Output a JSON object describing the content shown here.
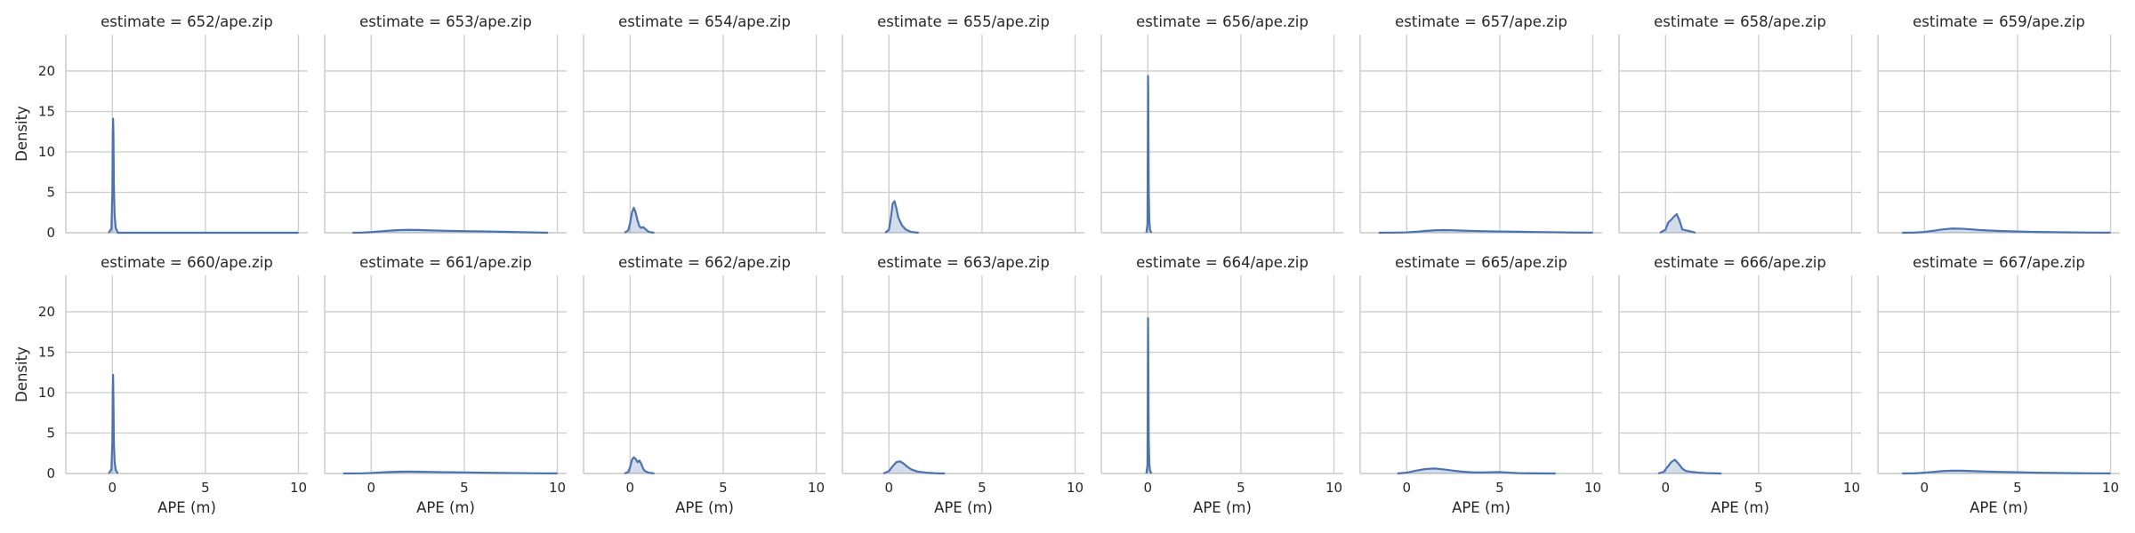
{
  "chart_data": {
    "type": "area",
    "facet_label_template": "estimate = {name}",
    "xlabel": "APE (m)",
    "ylabel": "Density",
    "xlim": [
      -2.5,
      10.5
    ],
    "ylim": [
      0,
      24.5
    ],
    "xticks": [
      0,
      5,
      10
    ],
    "yticks": [
      0,
      5,
      10,
      15,
      20
    ],
    "grid": true,
    "legend": "none",
    "color": "#4c72b0",
    "fill_color": "#4c72b0",
    "grid_color": "#cccccc",
    "facets": [
      {
        "name": "652/ape.zip",
        "curve": {
          "x": [
            -0.2,
            -0.05,
            0.0,
            0.02,
            0.04,
            0.06,
            0.08,
            0.12,
            0.18,
            0.3,
            10.0
          ],
          "y": [
            0,
            0.5,
            5,
            12,
            14.1,
            12,
            6,
            2.2,
            0.6,
            0,
            0
          ]
        }
      },
      {
        "name": "653/ape.zip",
        "curve": {
          "x": [
            -1.0,
            -0.5,
            0,
            0.5,
            1,
            1.5,
            2,
            2.5,
            3,
            4,
            5,
            6,
            7,
            8,
            9,
            9.5
          ],
          "y": [
            0,
            0.02,
            0.08,
            0.17,
            0.26,
            0.33,
            0.36,
            0.34,
            0.3,
            0.24,
            0.2,
            0.17,
            0.12,
            0.07,
            0.03,
            0
          ]
        }
      },
      {
        "name": "654/ape.zip",
        "curve": {
          "x": [
            -0.3,
            -0.1,
            0.0,
            0.1,
            0.2,
            0.3,
            0.4,
            0.5,
            0.6,
            0.7,
            0.8,
            1.0,
            1.3
          ],
          "y": [
            0,
            0.3,
            1.2,
            2.5,
            3.1,
            2.5,
            1.5,
            0.8,
            0.6,
            0.7,
            0.5,
            0.1,
            0
          ]
        }
      },
      {
        "name": "655/ape.zip",
        "curve": {
          "x": [
            -0.2,
            0.0,
            0.1,
            0.2,
            0.3,
            0.4,
            0.5,
            0.7,
            0.9,
            1.2,
            1.6
          ],
          "y": [
            0,
            0.4,
            1.8,
            3.6,
            3.9,
            3.0,
            1.9,
            0.9,
            0.4,
            0.1,
            0
          ]
        }
      },
      {
        "name": "656/ape.zip",
        "curve": {
          "x": [
            -0.08,
            -0.02,
            0.0,
            0.01,
            0.02,
            0.03,
            0.05,
            0.08,
            0.12,
            0.2
          ],
          "y": [
            0,
            1.0,
            12,
            19.4,
            18,
            13,
            5,
            1.5,
            0.3,
            0
          ]
        }
      },
      {
        "name": "657/ape.zip",
        "curve": {
          "x": [
            -1.5,
            -0.5,
            0,
            0.5,
            1,
            1.5,
            2,
            2.5,
            3,
            4,
            5,
            6,
            7,
            8,
            9,
            10
          ],
          "y": [
            0,
            0.02,
            0.05,
            0.12,
            0.22,
            0.3,
            0.33,
            0.31,
            0.26,
            0.2,
            0.16,
            0.12,
            0.09,
            0.06,
            0.03,
            0.01
          ]
        }
      },
      {
        "name": "658/ape.zip",
        "curve": {
          "x": [
            -0.3,
            0.0,
            0.15,
            0.3,
            0.45,
            0.6,
            0.75,
            0.9,
            1.1,
            1.3,
            1.6
          ],
          "y": [
            0,
            0.4,
            1.3,
            1.6,
            2.0,
            2.3,
            1.5,
            0.4,
            0.3,
            0.2,
            0
          ]
        }
      },
      {
        "name": "659/ape.zip",
        "curve": {
          "x": [
            -1.2,
            -0.5,
            0,
            0.5,
            1,
            1.5,
            2,
            2.5,
            3,
            4,
            5,
            6,
            7,
            8,
            9,
            10
          ],
          "y": [
            0,
            0.03,
            0.1,
            0.25,
            0.42,
            0.52,
            0.5,
            0.42,
            0.33,
            0.22,
            0.15,
            0.1,
            0.07,
            0.04,
            0.02,
            0.01
          ]
        }
      },
      {
        "name": "660/ape.zip",
        "curve": {
          "x": [
            -0.2,
            -0.05,
            0.0,
            0.02,
            0.04,
            0.06,
            0.08,
            0.12,
            0.18,
            0.3
          ],
          "y": [
            0,
            0.5,
            4,
            10,
            12.2,
            9,
            4,
            1.5,
            0.4,
            0
          ]
        }
      },
      {
        "name": "661/ape.zip",
        "curve": {
          "x": [
            -1.5,
            -0.5,
            0,
            0.5,
            1,
            1.5,
            2,
            2.5,
            3,
            4,
            5,
            6,
            7,
            8,
            9,
            10
          ],
          "y": [
            0,
            0.02,
            0.06,
            0.12,
            0.18,
            0.22,
            0.24,
            0.22,
            0.2,
            0.16,
            0.13,
            0.1,
            0.07,
            0.05,
            0.02,
            0.01
          ]
        }
      },
      {
        "name": "662/ape.zip",
        "curve": {
          "x": [
            -0.3,
            -0.1,
            0.0,
            0.1,
            0.2,
            0.3,
            0.4,
            0.5,
            0.6,
            0.7,
            0.8,
            1.0,
            1.3
          ],
          "y": [
            0,
            0.2,
            0.8,
            1.7,
            2.0,
            1.8,
            1.4,
            1.6,
            1.2,
            0.6,
            0.3,
            0.1,
            0
          ]
        }
      },
      {
        "name": "663/ape.zip",
        "curve": {
          "x": [
            -0.3,
            0.0,
            0.2,
            0.4,
            0.6,
            0.8,
            1.0,
            1.2,
            1.5,
            2.0,
            2.5,
            3.0
          ],
          "y": [
            0,
            0.3,
            0.9,
            1.4,
            1.5,
            1.2,
            0.8,
            0.5,
            0.25,
            0.1,
            0.03,
            0
          ]
        }
      },
      {
        "name": "664/ape.zip",
        "curve": {
          "x": [
            -0.08,
            -0.02,
            0.0,
            0.01,
            0.02,
            0.03,
            0.05,
            0.08,
            0.12,
            0.2
          ],
          "y": [
            0,
            1.0,
            12,
            19.2,
            17,
            12,
            4,
            1.2,
            0.3,
            0
          ]
        }
      },
      {
        "name": "665/ape.zip",
        "curve": {
          "x": [
            -0.5,
            0,
            0.5,
            1,
            1.5,
            2,
            2.5,
            3,
            3.5,
            4,
            4.5,
            5,
            5.5,
            6,
            7,
            8
          ],
          "y": [
            0,
            0.1,
            0.35,
            0.55,
            0.62,
            0.5,
            0.35,
            0.22,
            0.15,
            0.12,
            0.15,
            0.18,
            0.1,
            0.04,
            0.01,
            0
          ]
        }
      },
      {
        "name": "666/ape.zip",
        "curve": {
          "x": [
            -0.4,
            -0.1,
            0.1,
            0.3,
            0.5,
            0.7,
            0.9,
            1.1,
            1.4,
            1.8,
            2.2,
            3.0
          ],
          "y": [
            0,
            0.2,
            0.8,
            1.4,
            1.7,
            1.2,
            0.6,
            0.3,
            0.2,
            0.1,
            0.05,
            0
          ]
        }
      },
      {
        "name": "667/ape.zip",
        "curve": {
          "x": [
            -1.2,
            -0.5,
            0,
            0.5,
            1,
            1.5,
            2,
            2.5,
            3,
            4,
            5,
            6,
            7,
            8,
            9,
            10
          ],
          "y": [
            0,
            0.03,
            0.1,
            0.2,
            0.3,
            0.35,
            0.34,
            0.3,
            0.26,
            0.2,
            0.15,
            0.1,
            0.07,
            0.04,
            0.02,
            0.01
          ]
        }
      }
    ]
  }
}
